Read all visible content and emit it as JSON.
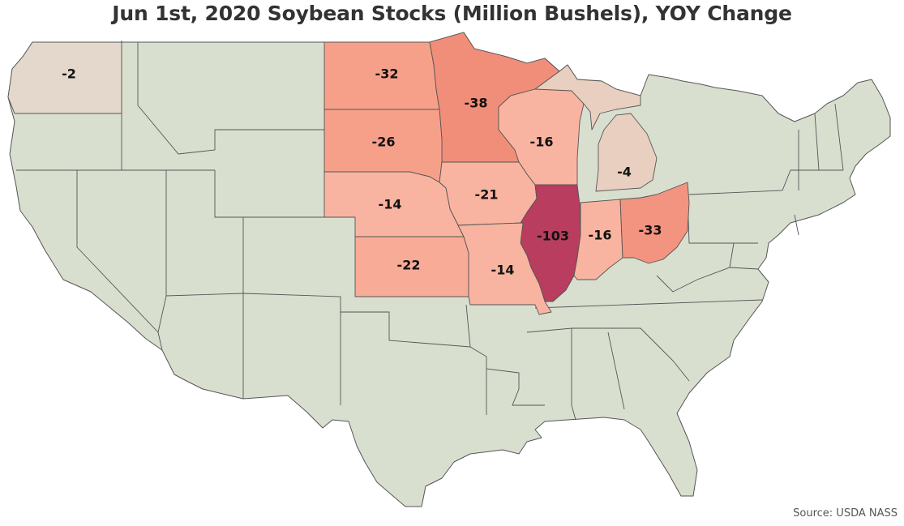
{
  "title": "Jun 1st, 2020 Soybean Stocks (Million Bushels), YOY Change",
  "source": "Source: USDA NASS",
  "colors": {
    "no_data": "#d9dfcf",
    "washington": "#e3d8cb",
    "michigan": "#e8cfbf",
    "light_salmon": "#f8b4a0",
    "mid_salmon": "#f6a08a",
    "salmon": "#f08e7a",
    "deep_salmon": "#ee8373",
    "illinois": "#b83d5e"
  },
  "states": [
    {
      "id": "washington",
      "value": "-2"
    },
    {
      "id": "north-dakota",
      "value": "-32"
    },
    {
      "id": "minnesota",
      "value": "-38"
    },
    {
      "id": "south-dakota",
      "value": "-26"
    },
    {
      "id": "wisconsin",
      "value": "-16"
    },
    {
      "id": "michigan",
      "value": "-4"
    },
    {
      "id": "iowa",
      "value": "-21"
    },
    {
      "id": "nebraska",
      "value": "-14"
    },
    {
      "id": "illinois",
      "value": "-103"
    },
    {
      "id": "indiana",
      "value": "-16"
    },
    {
      "id": "ohio",
      "value": "-33"
    },
    {
      "id": "kansas",
      "value": "-22"
    },
    {
      "id": "missouri",
      "value": "-14"
    }
  ]
}
